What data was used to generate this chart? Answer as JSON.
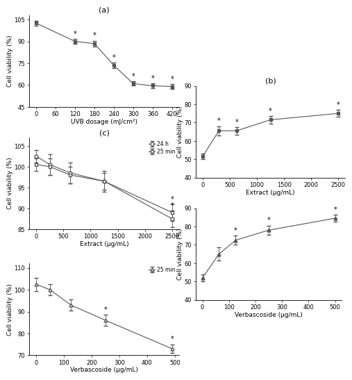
{
  "panel_a": {
    "title": "(a)",
    "x": [
      0,
      120,
      180,
      240,
      300,
      360,
      420
    ],
    "y": [
      102.5,
      90.0,
      88.5,
      73.5,
      61.0,
      59.5,
      59.0
    ],
    "yerr": [
      1.5,
      1.5,
      2.0,
      2.0,
      1.5,
      1.5,
      1.5
    ],
    "star": [
      false,
      true,
      true,
      true,
      true,
      true,
      true
    ],
    "xlabel": "UVB dosage (mJ/cm²)",
    "ylabel": "Cell viability (%)",
    "ylim": [
      45,
      108
    ],
    "yticks": [
      45,
      60,
      75,
      90,
      105
    ],
    "xticks": [
      0,
      60,
      120,
      180,
      240,
      300,
      360,
      420
    ]
  },
  "panel_b_top": {
    "title": "(b)",
    "x": [
      0,
      300,
      625,
      1250,
      2500
    ],
    "y": [
      51.5,
      65.5,
      65.5,
      71.5,
      75.0
    ],
    "yerr": [
      1.5,
      2.5,
      2.0,
      2.0,
      2.0
    ],
    "star": [
      false,
      true,
      true,
      true,
      true
    ],
    "xlabel": "Extract (μg/mL)",
    "ylabel": "Cell viability (%)",
    "ylim": [
      40,
      90
    ],
    "yticks": [
      40,
      50,
      60,
      70,
      80,
      90
    ],
    "xticks": [
      0,
      500,
      1000,
      1500,
      2000,
      2500
    ]
  },
  "panel_b_bottom": {
    "x": [
      0.0,
      62.5,
      125.0,
      250.0,
      500.0
    ],
    "y": [
      52.0,
      65.0,
      72.5,
      78.0,
      84.5
    ],
    "yerr": [
      2.0,
      3.5,
      2.5,
      2.5,
      2.0
    ],
    "star": [
      false,
      false,
      true,
      true,
      true
    ],
    "xlabel": "Verbascoside (μg/mL)",
    "ylabel": "Cell viability (%)",
    "ylim": [
      40,
      90
    ],
    "yticks": [
      40,
      50,
      60,
      70,
      80,
      90
    ],
    "xticks": [
      0.0,
      100.0,
      200.0,
      300.0,
      400.0,
      500.0
    ]
  },
  "panel_c_top": {
    "title": "(c)",
    "x_circ": [
      0,
      250,
      625,
      1250,
      2500
    ],
    "y_circ": [
      102.5,
      100.5,
      98.5,
      96.5,
      87.5
    ],
    "yerr_circ": [
      1.5,
      2.5,
      2.5,
      2.5,
      2.0
    ],
    "star_circ": [
      false,
      false,
      false,
      false,
      true
    ],
    "x_sq": [
      0,
      250,
      625,
      1250,
      2500
    ],
    "y_sq": [
      100.5,
      100.0,
      98.0,
      96.5,
      89.0
    ],
    "yerr_sq": [
      1.5,
      2.0,
      2.0,
      2.0,
      2.0
    ],
    "star_sq": [
      false,
      false,
      false,
      false,
      true
    ],
    "xlabel": "Extract (μg/mL)",
    "ylabel": "Cell viability (%)",
    "ylim": [
      85,
      107
    ],
    "yticks": [
      85,
      90,
      95,
      100,
      105
    ],
    "xticks": [
      0,
      500,
      1000,
      1500,
      2000,
      2500
    ],
    "legend_24h": "24 h",
    "legend_25min": "25 min"
  },
  "panel_c_bottom": {
    "x": [
      0,
      50,
      125,
      250,
      490
    ],
    "y": [
      102.5,
      100.0,
      93.0,
      86.0,
      73.0
    ],
    "yerr": [
      3.0,
      2.5,
      2.5,
      2.5,
      2.0
    ],
    "star": [
      false,
      false,
      false,
      true,
      true
    ],
    "xlabel": "Verbascoside (μg/mL)",
    "ylabel": "Cell viability (%)",
    "ylim": [
      70,
      112
    ],
    "yticks": [
      70,
      80,
      90,
      100,
      110
    ],
    "xticks": [
      0,
      100,
      200,
      300,
      400,
      500
    ],
    "legend_25min": "25 min"
  },
  "marker_color": "#555555",
  "line_color": "#888888",
  "star_fontsize": 7,
  "label_fontsize": 6.5,
  "tick_fontsize": 6,
  "title_fontsize": 8
}
